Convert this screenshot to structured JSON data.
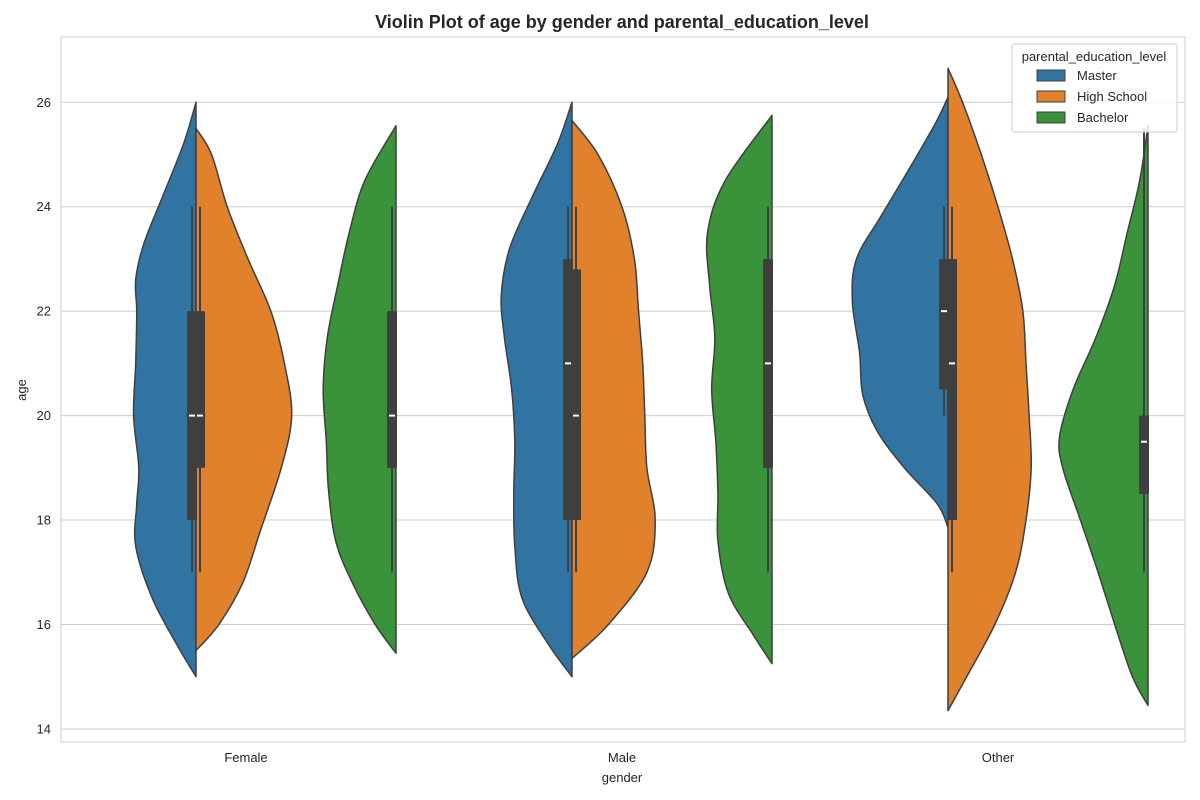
{
  "chart_data": {
    "type": "violin",
    "title": "Violin Plot of age by gender and parental_education_level",
    "xlabel": "gender",
    "ylabel": "age",
    "categories": [
      "Female",
      "Male",
      "Other"
    ],
    "ylim": [
      13.75,
      27.25
    ],
    "yticks": [
      14,
      16,
      18,
      20,
      22,
      24,
      26
    ],
    "grid": true,
    "split": true,
    "legend": {
      "title": "parental_education_level",
      "position": "top-right",
      "entries": [
        "Master",
        "High School",
        "Bachelor"
      ]
    },
    "series": [
      {
        "name": "Master",
        "color": "#3274a1",
        "violins": [
          {
            "category": "Female",
            "slot": 0,
            "side": "left",
            "min": 15.0,
            "max": 26.0,
            "q1": 18,
            "median": 20,
            "q3": 22,
            "whisker_low": 17,
            "whisker_high": 24,
            "profile": [
              [
                15.0,
                0
              ],
              [
                15.6,
                0.18
              ],
              [
                16.5,
                0.42
              ],
              [
                17.5,
                0.58
              ],
              [
                18.3,
                0.57
              ],
              [
                19.0,
                0.55
              ],
              [
                20.0,
                0.6
              ],
              [
                21.0,
                0.58
              ],
              [
                22.0,
                0.57
              ],
              [
                22.6,
                0.58
              ],
              [
                23.3,
                0.5
              ],
              [
                24.2,
                0.32
              ],
              [
                25.2,
                0.12
              ],
              [
                26.0,
                0
              ]
            ]
          },
          {
            "category": "Male",
            "slot": 0,
            "side": "left",
            "min": 15.0,
            "max": 26.0,
            "q1": 18,
            "median": 21,
            "q3": 23,
            "whisker_low": 17,
            "whisker_high": 24,
            "profile": [
              [
                15.0,
                0
              ],
              [
                15.6,
                0.22
              ],
              [
                16.5,
                0.48
              ],
              [
                17.5,
                0.55
              ],
              [
                18.5,
                0.56
              ],
              [
                19.5,
                0.55
              ],
              [
                20.5,
                0.58
              ],
              [
                21.5,
                0.65
              ],
              [
                22.3,
                0.68
              ],
              [
                23.2,
                0.6
              ],
              [
                24.2,
                0.38
              ],
              [
                25.2,
                0.14
              ],
              [
                26.0,
                0
              ]
            ]
          },
          {
            "category": "Other",
            "slot": 0,
            "side": "left",
            "min": 17.85,
            "max": 26.1,
            "q1": 20.5,
            "median": 22,
            "q3": 23,
            "whisker_low": 20,
            "whisker_high": 24,
            "profile": [
              [
                17.85,
                0
              ],
              [
                18.3,
                0.1
              ],
              [
                19.0,
                0.42
              ],
              [
                19.7,
                0.68
              ],
              [
                20.4,
                0.82
              ],
              [
                21.2,
                0.85
              ],
              [
                22.2,
                0.92
              ],
              [
                23.0,
                0.88
              ],
              [
                23.8,
                0.65
              ],
              [
                24.7,
                0.38
              ],
              [
                25.6,
                0.12
              ],
              [
                26.1,
                0
              ]
            ]
          }
        ]
      },
      {
        "name": "High School",
        "color": "#e1812c",
        "violins": [
          {
            "category": "Female",
            "slot": 0,
            "side": "right",
            "min": 15.5,
            "max": 25.5,
            "q1": 19,
            "median": 20,
            "q3": 22,
            "whisker_low": 17,
            "whisker_high": 24,
            "profile": [
              [
                15.5,
                0
              ],
              [
                16.0,
                0.22
              ],
              [
                16.8,
                0.45
              ],
              [
                17.8,
                0.62
              ],
              [
                19.0,
                0.82
              ],
              [
                20.0,
                0.92
              ],
              [
                21.0,
                0.85
              ],
              [
                22.0,
                0.72
              ],
              [
                23.0,
                0.5
              ],
              [
                24.0,
                0.3
              ],
              [
                25.0,
                0.15
              ],
              [
                25.5,
                0
              ]
            ]
          },
          {
            "category": "Male",
            "slot": 0,
            "side": "right",
            "min": 15.35,
            "max": 25.65,
            "q1": 18,
            "median": 20,
            "q3": 22.8,
            "whisker_low": 17,
            "whisker_high": 24,
            "profile": [
              [
                15.35,
                0
              ],
              [
                16.0,
                0.35
              ],
              [
                17.0,
                0.72
              ],
              [
                18.0,
                0.8
              ],
              [
                19.0,
                0.72
              ],
              [
                20.0,
                0.7
              ],
              [
                21.0,
                0.68
              ],
              [
                22.0,
                0.64
              ],
              [
                23.0,
                0.6
              ],
              [
                24.0,
                0.48
              ],
              [
                25.0,
                0.25
              ],
              [
                25.65,
                0
              ]
            ]
          },
          {
            "category": "Other",
            "slot": 0,
            "side": "right",
            "min": 14.35,
            "max": 26.65,
            "q1": 18,
            "median": 21,
            "q3": 23,
            "whisker_low": 17,
            "whisker_high": 24,
            "profile": [
              [
                14.35,
                0
              ],
              [
                15.0,
                0.18
              ],
              [
                16.0,
                0.45
              ],
              [
                17.0,
                0.65
              ],
              [
                18.0,
                0.75
              ],
              [
                19.0,
                0.8
              ],
              [
                20.0,
                0.78
              ],
              [
                21.0,
                0.75
              ],
              [
                22.0,
                0.72
              ],
              [
                23.0,
                0.62
              ],
              [
                24.0,
                0.48
              ],
              [
                25.0,
                0.32
              ],
              [
                26.0,
                0.14
              ],
              [
                26.65,
                0
              ]
            ]
          }
        ]
      },
      {
        "name": "Bachelor",
        "color": "#3a923a",
        "violins": [
          {
            "category": "Female",
            "slot": 1,
            "side": "left",
            "min": 15.45,
            "max": 25.55,
            "q1": 19,
            "median": 20,
            "q3": 22,
            "whisker_low": 17,
            "whisker_high": 24,
            "profile": [
              [
                15.45,
                0
              ],
              [
                16.0,
                0.2
              ],
              [
                16.8,
                0.42
              ],
              [
                17.6,
                0.58
              ],
              [
                18.6,
                0.65
              ],
              [
                19.5,
                0.67
              ],
              [
                20.5,
                0.7
              ],
              [
                21.5,
                0.66
              ],
              [
                22.5,
                0.56
              ],
              [
                23.5,
                0.45
              ],
              [
                24.5,
                0.3
              ],
              [
                25.55,
                0
              ]
            ]
          },
          {
            "category": "Male",
            "slot": 1,
            "side": "left",
            "min": 15.25,
            "max": 25.75,
            "q1": 19,
            "median": 21,
            "q3": 23,
            "whisker_low": 17,
            "whisker_high": 24,
            "profile": [
              [
                15.25,
                0
              ],
              [
                15.8,
                0.18
              ],
              [
                16.6,
                0.42
              ],
              [
                17.6,
                0.52
              ],
              [
                18.5,
                0.52
              ],
              [
                19.5,
                0.54
              ],
              [
                20.5,
                0.58
              ],
              [
                21.5,
                0.55
              ],
              [
                22.5,
                0.6
              ],
              [
                23.5,
                0.62
              ],
              [
                24.5,
                0.45
              ],
              [
                25.75,
                0
              ]
            ]
          },
          {
            "category": "Other",
            "slot": 1,
            "side": "left",
            "min": 14.45,
            "max": 25.55,
            "q1": 18.5,
            "median": 19.5,
            "q3": 20,
            "whisker_low": 17,
            "whisker_high": 25.5,
            "profile": [
              [
                14.45,
                0
              ],
              [
                15.0,
                0.15
              ],
              [
                16.0,
                0.32
              ],
              [
                17.0,
                0.48
              ],
              [
                18.0,
                0.65
              ],
              [
                19.0,
                0.82
              ],
              [
                19.6,
                0.85
              ],
              [
                20.5,
                0.72
              ],
              [
                21.5,
                0.5
              ],
              [
                22.5,
                0.32
              ],
              [
                23.5,
                0.2
              ],
              [
                24.5,
                0.08
              ],
              [
                25.55,
                0
              ]
            ]
          }
        ]
      }
    ]
  }
}
